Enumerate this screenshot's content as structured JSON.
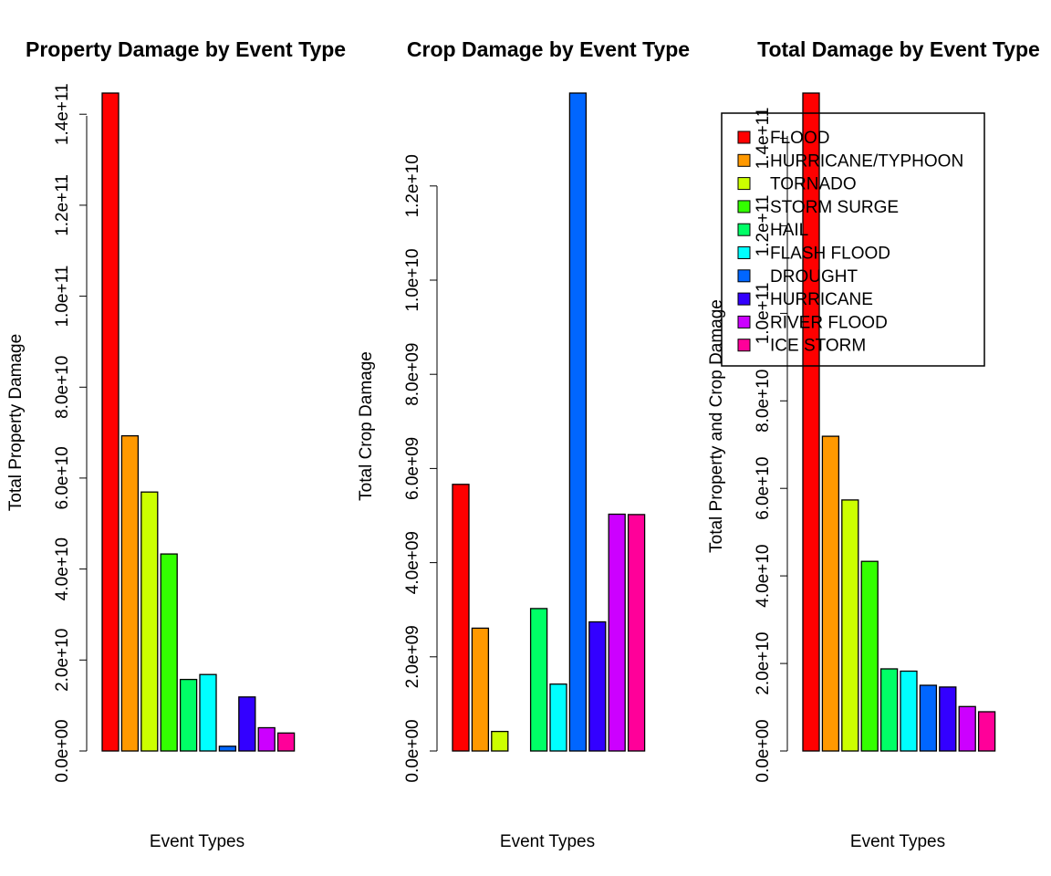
{
  "palette": [
    "#FF0000",
    "#FF9900",
    "#CCFF00",
    "#33FF00",
    "#00FF66",
    "#00FFFF",
    "#0066FF",
    "#3300FF",
    "#CC00FF",
    "#FF0099"
  ],
  "legend": {
    "placement": "top-right of third panel",
    "entries": [
      "FLOOD",
      "HURRICANE/TYPHOON",
      "TORNADO",
      "STORM SURGE",
      "HAIL",
      "FLASH FLOOD",
      "DROUGHT",
      "HURRICANE",
      "RIVER FLOOD",
      "ICE STORM"
    ]
  },
  "chart_data": [
    {
      "type": "bar",
      "title": "Property Damage by Event Type",
      "xlabel": "Event Types",
      "ylabel": "Total Property Damage",
      "categories": [
        "FLOOD",
        "HURRICANE/TYPHOON",
        "TORNADO",
        "STORM SURGE",
        "HAIL",
        "FLASH FLOOD",
        "DROUGHT",
        "HURRICANE",
        "RIVER FLOOD",
        "ICE STORM"
      ],
      "values": [
        144657709807,
        69305840000,
        56947380676,
        43323536000,
        15735267513,
        16822673978,
        1046106000,
        11868319010,
        5118945500,
        3944927860
      ],
      "yticks": [
        0,
        20000000000,
        40000000000,
        60000000000,
        80000000000,
        100000000000,
        120000000000,
        140000000000
      ],
      "ytick_labels": [
        "0.0e+00",
        "2.0e+10",
        "4.0e+10",
        "6.0e+10",
        "8.0e+10",
        "1.0e+11",
        "1.2e+11",
        "1.4e+11"
      ],
      "ylim": [
        0,
        144657709807
      ],
      "grid": false
    },
    {
      "type": "bar",
      "title": "Crop Damage by Event Type",
      "xlabel": "Event Types",
      "ylabel": "Total Crop Damage",
      "categories": [
        "FLOOD",
        "HURRICANE/TYPHOON",
        "TORNADO",
        "STORM SURGE",
        "HAIL",
        "FLASH FLOOD",
        "DROUGHT",
        "HURRICANE",
        "RIVER FLOOD",
        "ICE STORM"
      ],
      "values": [
        5661968450,
        2607872800,
        414953270,
        5000,
        3025954473,
        1421317100,
        13972566000,
        2741910000,
        5029459000,
        5022113500
      ],
      "yticks": [
        0,
        2000000000,
        4000000000,
        6000000000,
        8000000000,
        10000000000,
        12000000000
      ],
      "ytick_labels": [
        "0.0e+00",
        "2.0e+09",
        "4.0e+09",
        "6.0e+09",
        "8.0e+09",
        "1.0e+10",
        "1.2e+10"
      ],
      "ylim": [
        0,
        13972566000
      ],
      "grid": false
    },
    {
      "type": "bar",
      "title": "Total Damage by Event Type",
      "xlabel": "Event Types",
      "ylabel": "Total Property and Crop Damage",
      "categories": [
        "FLOOD",
        "HURRICANE/TYPHOON",
        "TORNADO",
        "STORM SURGE",
        "HAIL",
        "FLASH FLOOD",
        "DROUGHT",
        "HURRICANE",
        "RIVER FLOOD",
        "ICE STORM"
      ],
      "values": [
        150319678257,
        71913712800,
        57362333946,
        43323541000,
        18761221986,
        18243991078,
        15018672000,
        14610229010,
        10148404500,
        8967041360
      ],
      "yticks": [
        0,
        20000000000,
        40000000000,
        60000000000,
        80000000000,
        100000000000,
        120000000000,
        140000000000
      ],
      "ytick_labels": [
        "0.0e+00",
        "2.0e+10",
        "4.0e+10",
        "6.0e+10",
        "8.0e+10",
        "1.0e+11",
        "1.2e+11",
        "1.4e+11"
      ],
      "ylim": [
        0,
        150319678257
      ],
      "grid": false
    }
  ]
}
